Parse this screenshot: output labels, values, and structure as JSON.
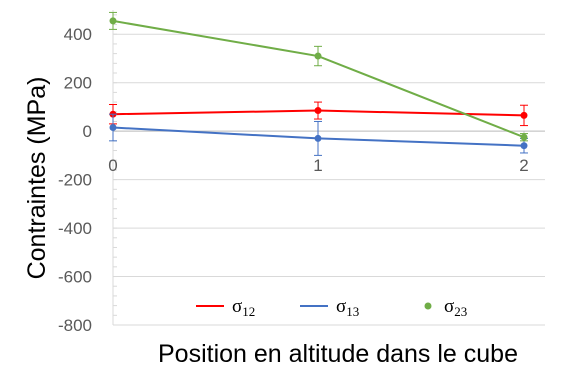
{
  "chart_data": {
    "type": "line",
    "title": "",
    "xlabel": "Position en altitude dans le cube",
    "ylabel": "Contraintes (MPa)",
    "x": [
      0,
      1,
      2
    ],
    "x_tick_labels": [
      "0",
      "1",
      "2"
    ],
    "ylim": [
      -800,
      500
    ],
    "y_ticks": [
      400,
      200,
      0,
      -200,
      -400,
      -600,
      -800
    ],
    "y_tick_labels": [
      "400",
      "200",
      "0",
      "-200",
      "-400",
      "-600",
      "-800"
    ],
    "grid": "horizontal",
    "legend_position": "bottom",
    "series": [
      {
        "name": "σ12",
        "name_base": "σ",
        "name_sub": "12",
        "color": "#ff0000",
        "style": "line",
        "values": [
          70,
          85,
          65
        ],
        "errors": [
          40,
          35,
          42
        ]
      },
      {
        "name": "σ13",
        "name_base": "σ",
        "name_sub": "13",
        "color": "#4472c4",
        "style": "line",
        "values": [
          15,
          -30,
          -60
        ],
        "errors": [
          55,
          70,
          30
        ]
      },
      {
        "name": "σ23",
        "name_base": "σ",
        "name_sub": "23",
        "color": "#70ad47",
        "style": "line",
        "legend_marker": "dot",
        "values": [
          455,
          310,
          -25
        ],
        "errors": [
          35,
          40,
          15
        ]
      }
    ]
  }
}
